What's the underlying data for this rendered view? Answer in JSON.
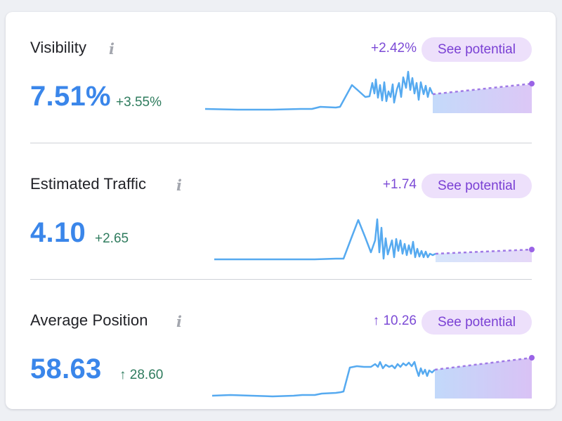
{
  "metrics": [
    {
      "title": "Visibility",
      "value": "7.51%",
      "change": "+3.55%",
      "potential_change": "+2.42%",
      "potential_button": "See potential",
      "info_icon": "info-icon"
    },
    {
      "title": "Estimated Traffic",
      "value": "4.10",
      "change": "+2.65",
      "potential_change": "+1.74",
      "potential_button": "See potential",
      "info_icon": "info-icon"
    },
    {
      "title": "Average Position",
      "value": "58.63",
      "change": "↑ 28.60",
      "potential_change": "↑ 10.26",
      "potential_button": "See potential",
      "info_icon": "info-icon"
    }
  ],
  "colors": {
    "value_blue": "#3a86ea",
    "change_green": "#2f7c5e",
    "potential_purple": "#7c4bd6",
    "button_bg": "#ede0fb",
    "sparkline": "#56aaf0",
    "forecast_dot": "#9a63e6"
  }
}
